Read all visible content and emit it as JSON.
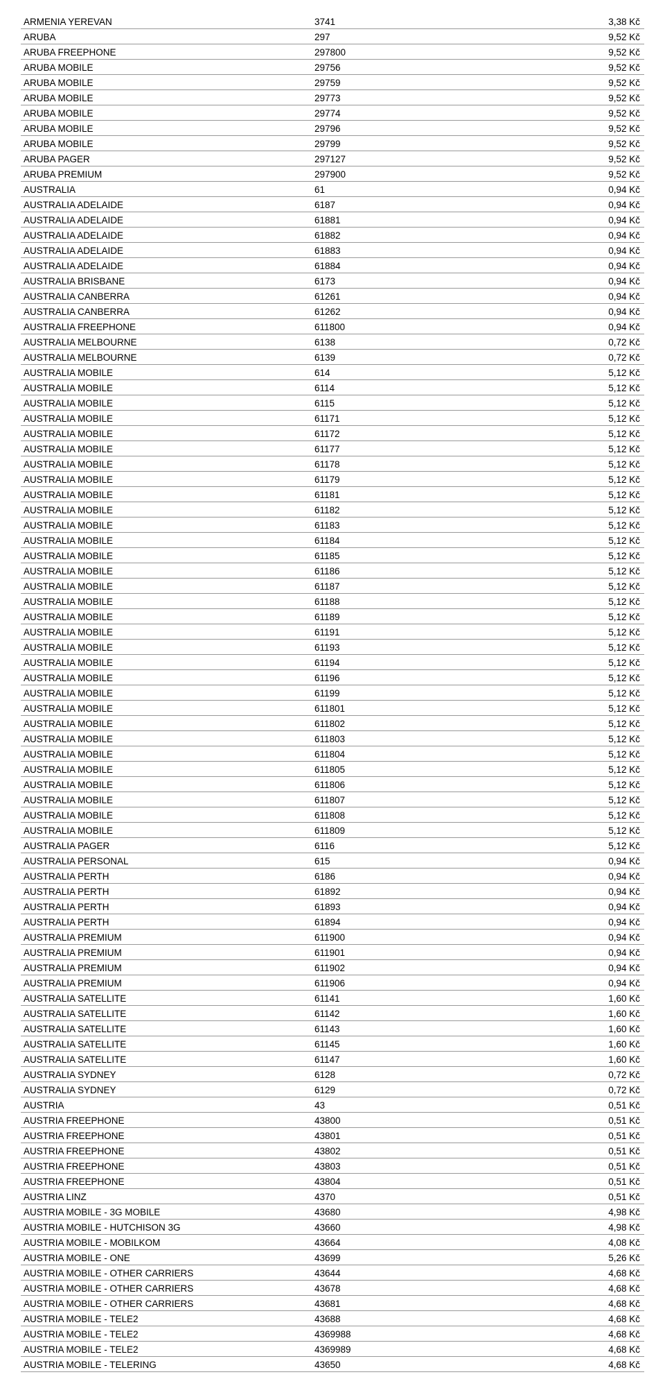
{
  "table": {
    "colors": {
      "border": "#999999",
      "text": "#000000",
      "background": "#ffffff"
    },
    "font_size_pt": 10,
    "rows": [
      {
        "name": "ARMENIA YEREVAN",
        "code": "3741",
        "price": "3,38 Kč"
      },
      {
        "name": "ARUBA",
        "code": "297",
        "price": "9,52 Kč"
      },
      {
        "name": "ARUBA FREEPHONE",
        "code": "297800",
        "price": "9,52 Kč"
      },
      {
        "name": "ARUBA MOBILE",
        "code": "29756",
        "price": "9,52 Kč"
      },
      {
        "name": "ARUBA MOBILE",
        "code": "29759",
        "price": "9,52 Kč"
      },
      {
        "name": "ARUBA MOBILE",
        "code": "29773",
        "price": "9,52 Kč"
      },
      {
        "name": "ARUBA MOBILE",
        "code": "29774",
        "price": "9,52 Kč"
      },
      {
        "name": "ARUBA MOBILE",
        "code": "29796",
        "price": "9,52 Kč"
      },
      {
        "name": "ARUBA MOBILE",
        "code": "29799",
        "price": "9,52 Kč"
      },
      {
        "name": "ARUBA PAGER",
        "code": "297127",
        "price": "9,52 Kč"
      },
      {
        "name": "ARUBA PREMIUM",
        "code": "297900",
        "price": "9,52 Kč"
      },
      {
        "name": "AUSTRALIA",
        "code": "61",
        "price": "0,94 Kč"
      },
      {
        "name": "AUSTRALIA ADELAIDE",
        "code": "6187",
        "price": "0,94 Kč"
      },
      {
        "name": "AUSTRALIA ADELAIDE",
        "code": "61881",
        "price": "0,94 Kč"
      },
      {
        "name": "AUSTRALIA ADELAIDE",
        "code": "61882",
        "price": "0,94 Kč"
      },
      {
        "name": "AUSTRALIA ADELAIDE",
        "code": "61883",
        "price": "0,94 Kč"
      },
      {
        "name": "AUSTRALIA ADELAIDE",
        "code": "61884",
        "price": "0,94 Kč"
      },
      {
        "name": "AUSTRALIA BRISBANE",
        "code": "6173",
        "price": "0,94 Kč"
      },
      {
        "name": "AUSTRALIA CANBERRA",
        "code": "61261",
        "price": "0,94 Kč"
      },
      {
        "name": "AUSTRALIA CANBERRA",
        "code": "61262",
        "price": "0,94 Kč"
      },
      {
        "name": "AUSTRALIA FREEPHONE",
        "code": "611800",
        "price": "0,94 Kč"
      },
      {
        "name": "AUSTRALIA MELBOURNE",
        "code": "6138",
        "price": "0,72 Kč"
      },
      {
        "name": "AUSTRALIA MELBOURNE",
        "code": "6139",
        "price": "0,72 Kč"
      },
      {
        "name": "AUSTRALIA MOBILE",
        "code": "614",
        "price": "5,12 Kč"
      },
      {
        "name": "AUSTRALIA MOBILE",
        "code": "6114",
        "price": "5,12 Kč"
      },
      {
        "name": "AUSTRALIA MOBILE",
        "code": "6115",
        "price": "5,12 Kč"
      },
      {
        "name": "AUSTRALIA MOBILE",
        "code": "61171",
        "price": "5,12 Kč"
      },
      {
        "name": "AUSTRALIA MOBILE",
        "code": "61172",
        "price": "5,12 Kč"
      },
      {
        "name": "AUSTRALIA MOBILE",
        "code": "61177",
        "price": "5,12 Kč"
      },
      {
        "name": "AUSTRALIA MOBILE",
        "code": "61178",
        "price": "5,12 Kč"
      },
      {
        "name": "AUSTRALIA MOBILE",
        "code": "61179",
        "price": "5,12 Kč"
      },
      {
        "name": "AUSTRALIA MOBILE",
        "code": "61181",
        "price": "5,12 Kč"
      },
      {
        "name": "AUSTRALIA MOBILE",
        "code": "61182",
        "price": "5,12 Kč"
      },
      {
        "name": "AUSTRALIA MOBILE",
        "code": "61183",
        "price": "5,12 Kč"
      },
      {
        "name": "AUSTRALIA MOBILE",
        "code": "61184",
        "price": "5,12 Kč"
      },
      {
        "name": "AUSTRALIA MOBILE",
        "code": "61185",
        "price": "5,12 Kč"
      },
      {
        "name": "AUSTRALIA MOBILE",
        "code": "61186",
        "price": "5,12 Kč"
      },
      {
        "name": "AUSTRALIA MOBILE",
        "code": "61187",
        "price": "5,12 Kč"
      },
      {
        "name": "AUSTRALIA MOBILE",
        "code": "61188",
        "price": "5,12 Kč"
      },
      {
        "name": "AUSTRALIA MOBILE",
        "code": "61189",
        "price": "5,12 Kč"
      },
      {
        "name": "AUSTRALIA MOBILE",
        "code": "61191",
        "price": "5,12 Kč"
      },
      {
        "name": "AUSTRALIA MOBILE",
        "code": "61193",
        "price": "5,12 Kč"
      },
      {
        "name": "AUSTRALIA MOBILE",
        "code": "61194",
        "price": "5,12 Kč"
      },
      {
        "name": "AUSTRALIA MOBILE",
        "code": "61196",
        "price": "5,12 Kč"
      },
      {
        "name": "AUSTRALIA MOBILE",
        "code": "61199",
        "price": "5,12 Kč"
      },
      {
        "name": "AUSTRALIA MOBILE",
        "code": "611801",
        "price": "5,12 Kč"
      },
      {
        "name": "AUSTRALIA MOBILE",
        "code": "611802",
        "price": "5,12 Kč"
      },
      {
        "name": "AUSTRALIA MOBILE",
        "code": "611803",
        "price": "5,12 Kč"
      },
      {
        "name": "AUSTRALIA MOBILE",
        "code": "611804",
        "price": "5,12 Kč"
      },
      {
        "name": "AUSTRALIA MOBILE",
        "code": "611805",
        "price": "5,12 Kč"
      },
      {
        "name": "AUSTRALIA MOBILE",
        "code": "611806",
        "price": "5,12 Kč"
      },
      {
        "name": "AUSTRALIA MOBILE",
        "code": "611807",
        "price": "5,12 Kč"
      },
      {
        "name": "AUSTRALIA MOBILE",
        "code": "611808",
        "price": "5,12 Kč"
      },
      {
        "name": "AUSTRALIA MOBILE",
        "code": "611809",
        "price": "5,12 Kč"
      },
      {
        "name": "AUSTRALIA PAGER",
        "code": "6116",
        "price": "5,12 Kč"
      },
      {
        "name": "AUSTRALIA PERSONAL",
        "code": "615",
        "price": "0,94 Kč"
      },
      {
        "name": "AUSTRALIA PERTH",
        "code": "6186",
        "price": "0,94 Kč"
      },
      {
        "name": "AUSTRALIA PERTH",
        "code": "61892",
        "price": "0,94 Kč"
      },
      {
        "name": "AUSTRALIA PERTH",
        "code": "61893",
        "price": "0,94 Kč"
      },
      {
        "name": "AUSTRALIA PERTH",
        "code": "61894",
        "price": "0,94 Kč"
      },
      {
        "name": "AUSTRALIA PREMIUM",
        "code": "611900",
        "price": "0,94 Kč"
      },
      {
        "name": "AUSTRALIA PREMIUM",
        "code": "611901",
        "price": "0,94 Kč"
      },
      {
        "name": "AUSTRALIA PREMIUM",
        "code": "611902",
        "price": "0,94 Kč"
      },
      {
        "name": "AUSTRALIA PREMIUM",
        "code": "611906",
        "price": "0,94 Kč"
      },
      {
        "name": "AUSTRALIA SATELLITE",
        "code": "61141",
        "price": "1,60 Kč"
      },
      {
        "name": "AUSTRALIA SATELLITE",
        "code": "61142",
        "price": "1,60 Kč"
      },
      {
        "name": "AUSTRALIA SATELLITE",
        "code": "61143",
        "price": "1,60 Kč"
      },
      {
        "name": "AUSTRALIA SATELLITE",
        "code": "61145",
        "price": "1,60 Kč"
      },
      {
        "name": "AUSTRALIA SATELLITE",
        "code": "61147",
        "price": "1,60 Kč"
      },
      {
        "name": "AUSTRALIA SYDNEY",
        "code": "6128",
        "price": "0,72 Kč"
      },
      {
        "name": "AUSTRALIA SYDNEY",
        "code": "6129",
        "price": "0,72 Kč"
      },
      {
        "name": "AUSTRIA",
        "code": "43",
        "price": "0,51 Kč"
      },
      {
        "name": "AUSTRIA FREEPHONE",
        "code": "43800",
        "price": "0,51 Kč"
      },
      {
        "name": "AUSTRIA FREEPHONE",
        "code": "43801",
        "price": "0,51 Kč"
      },
      {
        "name": "AUSTRIA FREEPHONE",
        "code": "43802",
        "price": "0,51 Kč"
      },
      {
        "name": "AUSTRIA FREEPHONE",
        "code": "43803",
        "price": "0,51 Kč"
      },
      {
        "name": "AUSTRIA FREEPHONE",
        "code": "43804",
        "price": "0,51 Kč"
      },
      {
        "name": "AUSTRIA LINZ",
        "code": "4370",
        "price": "0,51 Kč"
      },
      {
        "name": "AUSTRIA MOBILE - 3G MOBILE",
        "code": "43680",
        "price": "4,98 Kč"
      },
      {
        "name": "AUSTRIA MOBILE - HUTCHISON 3G",
        "code": "43660",
        "price": "4,98 Kč"
      },
      {
        "name": "AUSTRIA MOBILE - MOBILKOM",
        "code": "43664",
        "price": "4,08 Kč"
      },
      {
        "name": "AUSTRIA MOBILE - ONE",
        "code": "43699",
        "price": "5,26 Kč"
      },
      {
        "name": "AUSTRIA MOBILE - OTHER CARRIERS",
        "code": "43644",
        "price": "4,68 Kč"
      },
      {
        "name": "AUSTRIA MOBILE - OTHER CARRIERS",
        "code": "43678",
        "price": "4,68 Kč"
      },
      {
        "name": "AUSTRIA MOBILE - OTHER CARRIERS",
        "code": "43681",
        "price": "4,68 Kč"
      },
      {
        "name": "AUSTRIA MOBILE - TELE2",
        "code": "43688",
        "price": "4,68 Kč"
      },
      {
        "name": "AUSTRIA MOBILE - TELE2",
        "code": "4369988",
        "price": "4,68 Kč"
      },
      {
        "name": "AUSTRIA MOBILE - TELE2",
        "code": "4369989",
        "price": "4,68 Kč"
      },
      {
        "name": "AUSTRIA MOBILE - TELERING",
        "code": "43650",
        "price": "4,68 Kč"
      }
    ]
  }
}
